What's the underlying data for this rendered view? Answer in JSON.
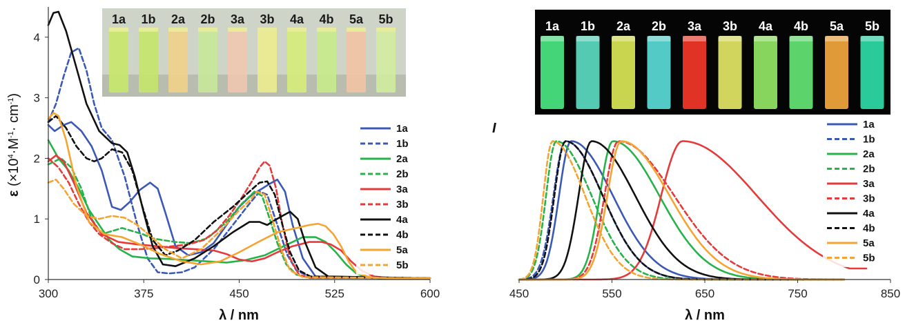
{
  "colors": {
    "blue": "#3b58b5",
    "green": "#27b24a",
    "red": "#e63a3a",
    "black": "#111111",
    "orange": "#f5a431"
  },
  "chart_data": [
    {
      "type": "line",
      "xlabel": "λ / nm",
      "ylabel_parts": [
        "ε",
        " (×10",
        "4",
        "·M",
        "-1",
        "· cm",
        "-1",
        ")"
      ],
      "xlim": [
        300,
        600
      ],
      "ylim": [
        0,
        4.5
      ],
      "xticks": [
        300,
        375,
        450,
        525,
        600
      ],
      "yticks": [
        0,
        1,
        2,
        3,
        4
      ],
      "photo_labels": [
        "1a",
        "1b",
        "2a",
        "2b",
        "3a",
        "3b",
        "4a",
        "4b",
        "5a",
        "5b"
      ],
      "photo_colors": [
        "#c8e86a",
        "#c4e56a",
        "#f0d08a",
        "#c8e89a",
        "#f0c6b0",
        "#ecec8e",
        "#d6ec7a",
        "#c8eb8a",
        "#f2c3a4",
        "#d2ec9e"
      ],
      "series": [
        {
          "name": "1a",
          "color": "blue",
          "dash": false,
          "x": [
            300,
            305,
            312,
            318,
            326,
            334,
            342,
            350,
            357,
            364,
            372,
            380,
            386,
            392,
            400,
            410,
            420,
            430,
            440,
            450,
            460,
            468,
            474,
            480,
            486,
            492,
            500,
            510,
            600
          ],
          "y": [
            2.55,
            2.45,
            2.55,
            2.6,
            2.45,
            2.2,
            1.8,
            1.2,
            1.15,
            1.28,
            1.48,
            1.6,
            1.5,
            1.1,
            0.55,
            0.4,
            0.45,
            0.6,
            0.9,
            1.2,
            1.4,
            1.5,
            1.58,
            1.65,
            1.45,
            0.9,
            0.35,
            0.05,
            0.02
          ]
        },
        {
          "name": "1b",
          "color": "blue",
          "dash": true,
          "x": [
            300,
            306,
            312,
            318,
            324,
            330,
            336,
            342,
            350,
            360,
            370,
            378,
            386,
            395,
            405,
            415,
            430,
            445,
            458,
            466,
            472,
            480,
            488,
            495,
            505,
            600
          ],
          "y": [
            2.6,
            2.9,
            3.35,
            3.75,
            3.82,
            3.45,
            2.9,
            2.5,
            2.3,
            1.7,
            0.9,
            0.35,
            0.12,
            0.1,
            0.12,
            0.2,
            0.5,
            0.9,
            1.25,
            1.45,
            1.4,
            0.9,
            0.4,
            0.15,
            0.05,
            0.02
          ]
        },
        {
          "name": "2a",
          "color": "green",
          "dash": false,
          "x": [
            300,
            308,
            316,
            324,
            332,
            340,
            348,
            356,
            366,
            380,
            395,
            410,
            425,
            440,
            455,
            470,
            485,
            500,
            510,
            518,
            526,
            534,
            542,
            550,
            560,
            600
          ],
          "y": [
            2.3,
            2.0,
            1.8,
            1.5,
            1.15,
            0.9,
            0.65,
            0.5,
            0.38,
            0.35,
            0.34,
            0.32,
            0.3,
            0.28,
            0.32,
            0.4,
            0.55,
            0.7,
            0.7,
            0.62,
            0.45,
            0.25,
            0.1,
            0.04,
            0.02,
            0.02
          ]
        },
        {
          "name": "2b",
          "color": "green",
          "dash": true,
          "x": [
            300,
            310,
            318,
            326,
            334,
            342,
            350,
            358,
            366,
            374,
            382,
            390,
            400,
            412,
            425,
            440,
            452,
            462,
            468,
            474,
            480,
            487,
            495,
            505,
            600
          ],
          "y": [
            1.9,
            2.0,
            1.85,
            1.5,
            1.0,
            0.75,
            0.8,
            0.85,
            0.8,
            0.75,
            0.68,
            0.65,
            0.62,
            0.6,
            0.68,
            0.95,
            1.25,
            1.45,
            1.38,
            1.0,
            0.6,
            0.25,
            0.08,
            0.03,
            0.02
          ]
        },
        {
          "name": "3a",
          "color": "red",
          "dash": false,
          "x": [
            300,
            306,
            312,
            320,
            330,
            342,
            355,
            370,
            385,
            400,
            415,
            430,
            440,
            450,
            460,
            470,
            480,
            492,
            505,
            515,
            522,
            530,
            538,
            546,
            556,
            570,
            600
          ],
          "y": [
            1.95,
            2.05,
            1.95,
            1.6,
            1.1,
            0.75,
            0.62,
            0.58,
            0.55,
            0.52,
            0.5,
            0.48,
            0.42,
            0.33,
            0.3,
            0.35,
            0.45,
            0.55,
            0.62,
            0.62,
            0.58,
            0.48,
            0.3,
            0.15,
            0.05,
            0.02,
            0.02
          ]
        },
        {
          "name": "3b",
          "color": "red",
          "dash": true,
          "x": [
            300,
            308,
            316,
            324,
            332,
            340,
            350,
            360,
            372,
            385,
            398,
            410,
            422,
            432,
            442,
            452,
            460,
            466,
            470,
            474,
            479,
            484,
            490,
            497,
            505,
            600
          ],
          "y": [
            2.0,
            1.85,
            1.6,
            1.25,
            0.95,
            0.75,
            0.6,
            0.5,
            0.5,
            0.52,
            0.55,
            0.58,
            0.65,
            0.8,
            1.05,
            1.35,
            1.62,
            1.85,
            1.95,
            1.88,
            1.5,
            0.9,
            0.35,
            0.08,
            0.03,
            0.02
          ]
        },
        {
          "name": "4a",
          "color": "black",
          "dash": false,
          "x": [
            300,
            304,
            308,
            314,
            322,
            330,
            340,
            350,
            356,
            362,
            368,
            375,
            382,
            390,
            400,
            415,
            430,
            445,
            458,
            466,
            472,
            478,
            484,
            490,
            496,
            502,
            510,
            520,
            600
          ],
          "y": [
            4.2,
            4.4,
            4.42,
            4.1,
            3.5,
            2.9,
            2.45,
            2.25,
            2.22,
            2.1,
            1.7,
            1.1,
            0.55,
            0.25,
            0.22,
            0.35,
            0.55,
            0.78,
            0.95,
            0.95,
            0.9,
            0.98,
            1.05,
            1.12,
            1.0,
            0.6,
            0.2,
            0.05,
            0.02
          ]
        },
        {
          "name": "4b",
          "color": "black",
          "dash": true,
          "x": [
            300,
            306,
            314,
            322,
            330,
            336,
            342,
            350,
            358,
            366,
            374,
            382,
            392,
            402,
            415,
            430,
            445,
            458,
            466,
            472,
            478,
            484,
            490,
            497,
            506,
            600
          ],
          "y": [
            2.6,
            2.7,
            2.5,
            2.2,
            2.0,
            1.95,
            2.0,
            2.15,
            2.1,
            1.8,
            1.2,
            0.65,
            0.4,
            0.48,
            0.65,
            0.95,
            1.2,
            1.45,
            1.6,
            1.62,
            1.4,
            0.9,
            0.45,
            0.15,
            0.05,
            0.02
          ]
        },
        {
          "name": "5a",
          "color": "orange",
          "dash": false,
          "x": [
            300,
            304,
            308,
            314,
            322,
            332,
            344,
            358,
            372,
            388,
            405,
            420,
            435,
            450,
            465,
            480,
            495,
            505,
            512,
            518,
            524,
            530,
            536,
            542,
            552,
            565,
            600
          ],
          "y": [
            2.65,
            2.75,
            2.7,
            2.3,
            1.55,
            0.95,
            0.75,
            0.7,
            0.58,
            0.42,
            0.3,
            0.25,
            0.3,
            0.45,
            0.62,
            0.78,
            0.85,
            0.9,
            0.92,
            0.88,
            0.75,
            0.55,
            0.3,
            0.12,
            0.04,
            0.02,
            0.02
          ]
        },
        {
          "name": "5b",
          "color": "orange",
          "dash": true,
          "x": [
            300,
            306,
            312,
            320,
            330,
            340,
            350,
            360,
            370,
            380,
            392,
            405,
            420,
            435,
            448,
            458,
            464,
            470,
            476,
            483,
            490,
            500,
            600
          ],
          "y": [
            1.6,
            1.65,
            1.5,
            1.25,
            1.05,
            1.0,
            1.05,
            1.02,
            0.9,
            0.72,
            0.5,
            0.35,
            0.5,
            0.8,
            1.1,
            1.3,
            1.45,
            1.4,
            1.0,
            0.5,
            0.15,
            0.04,
            0.02
          ]
        }
      ]
    },
    {
      "type": "line",
      "xlabel": "λ / nm",
      "ylabel": "I",
      "xlim": [
        450,
        850
      ],
      "ylim": [
        0,
        1.1
      ],
      "xticks": [
        450,
        550,
        650,
        750,
        850
      ],
      "photo_labels": [
        "1a",
        "1b",
        "2a",
        "2b",
        "3a",
        "3b",
        "4a",
        "4b",
        "5a",
        "5b"
      ],
      "photo_colors": [
        "#4df28a",
        "#5ee6c9",
        "#e6f25a",
        "#5ee6e0",
        "#ff3a2a",
        "#eef26a",
        "#9af26a",
        "#6af07a",
        "#ffb040",
        "#30e6b0"
      ],
      "series": [
        {
          "name": "1a",
          "color": "blue",
          "dash": false,
          "peak": 506,
          "wl": 13,
          "wr": 45
        },
        {
          "name": "1b",
          "color": "blue",
          "dash": true,
          "peak": 500,
          "wl": 13,
          "wr": 40
        },
        {
          "name": "2a",
          "color": "green",
          "dash": false,
          "peak": 551,
          "wl": 14,
          "wr": 50
        },
        {
          "name": "2b",
          "color": "green",
          "dash": true,
          "peak": 490,
          "wl": 11,
          "wr": 38
        },
        {
          "name": "3a",
          "color": "red",
          "dash": false,
          "peak": 626,
          "wl": 23,
          "wr": 80,
          "end": 825
        },
        {
          "name": "3b",
          "color": "red",
          "dash": true,
          "peak": 557,
          "wl": 15,
          "wr": 60
        },
        {
          "name": "4a",
          "color": "black",
          "dash": false,
          "peak": 528,
          "wl": 14,
          "wr": 47
        },
        {
          "name": "4b",
          "color": "black",
          "dash": true,
          "peak": 500,
          "wl": 12,
          "wr": 40
        },
        {
          "name": "5a",
          "color": "orange",
          "dash": false,
          "peak": 560,
          "wl": 15,
          "wr": 52
        },
        {
          "name": "5b",
          "color": "orange",
          "dash": true,
          "peak": 486,
          "wl": 10,
          "wr": 35
        }
      ]
    }
  ]
}
